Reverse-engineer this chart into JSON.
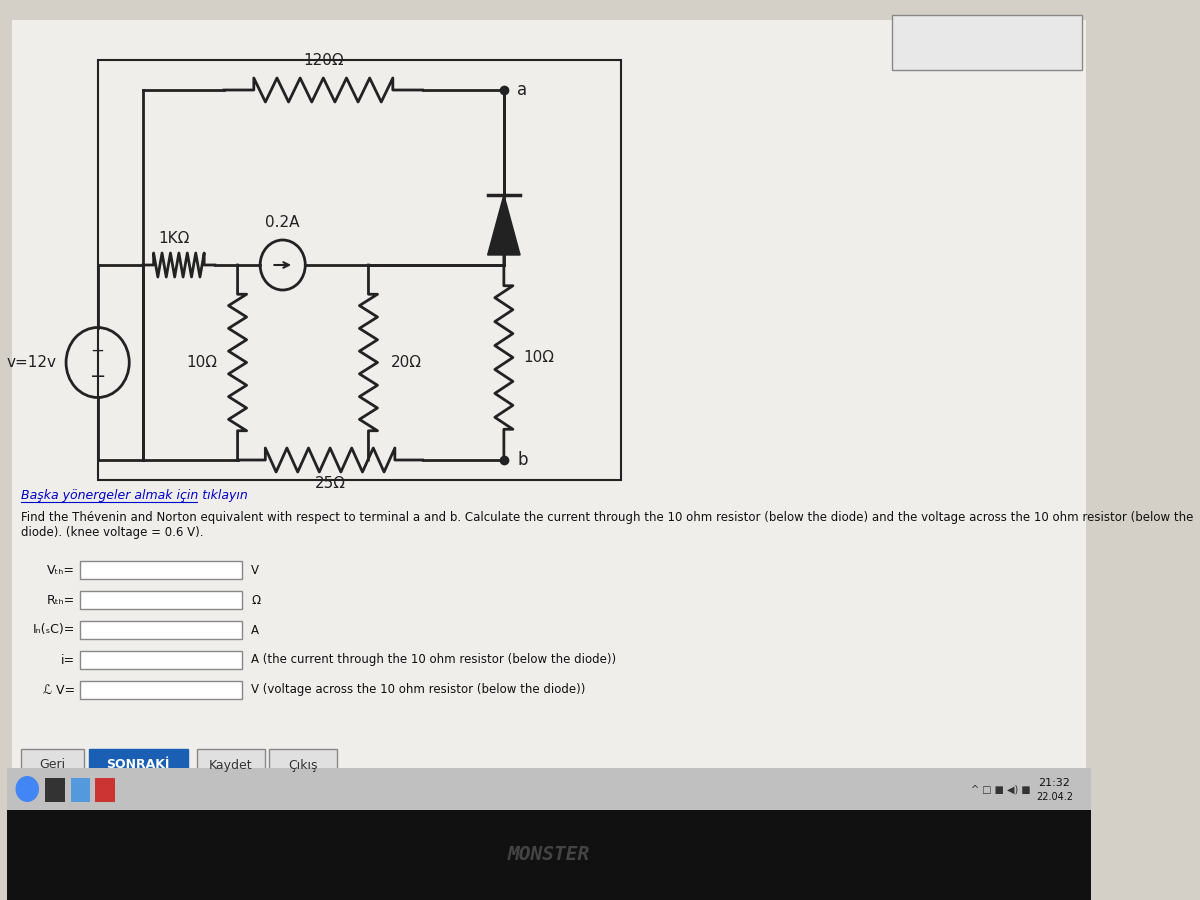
{
  "bg_color": "#d4d0c8",
  "screen_bg": "#f0eeeb",
  "circuit_bg": "#f0eeeb",
  "title_text": "",
  "link_text": "Başka yönergeler almak için tıklayın",
  "problem_text": "Find the Thévenin and Norton equivalent with respect to terminal a and b. Calculate the current through the 10 ohm resistor (below the diode) and the voltage across the 10 ohm resistor (below the diode). (knee voltage = 0.6 V).",
  "labels": {
    "R120": "120Ω",
    "R1K": "1KΩ",
    "I02": "0.2A",
    "V12": "v=12v",
    "R10_left": "10Ω",
    "R20": "20Ω",
    "R25": "25Ω",
    "R10_right": "10Ω",
    "node_a": "a",
    "node_b": "b"
  },
  "form_labels": {
    "vth": "Vₜₕ=",
    "rth": "Rₜₕ=",
    "in_sc": "Iₙ(ₛC)=",
    "i": "i=",
    "vn": "ℒ V=",
    "unit_vth": "V",
    "unit_rth": "Ω",
    "unit_in": "A",
    "unit_i": "A (the current through the 10 ohm resistor (below the diode))",
    "unit_v": "V (voltage across the 10 ohm resistor (below the diode))"
  },
  "buttons": {
    "geri": "Geri",
    "sonraki": "SONRAKİ",
    "kaydet": "Kaydet",
    "cikis": "Çıkış"
  },
  "taskbar": {
    "time": "21:32",
    "date": "22.04.2"
  },
  "dark_bar_color": "#1a1a1a",
  "monster_color": "#333333"
}
